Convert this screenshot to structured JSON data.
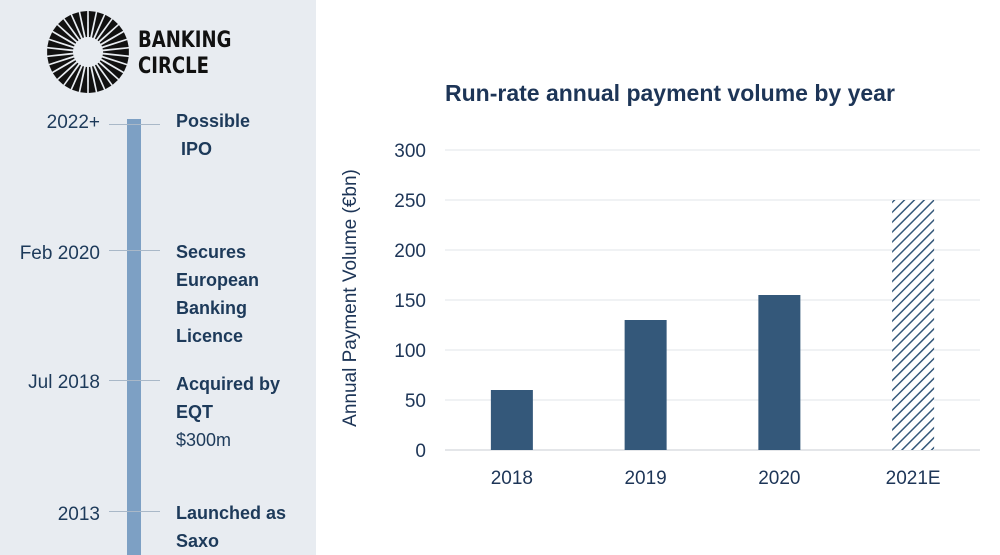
{
  "brand": {
    "line1": "BANKING",
    "line2": "CIRCLE",
    "colors": {
      "logo": "#111111"
    },
    "logo_icon": "sunburst-logo-icon"
  },
  "timeline": [
    {
      "date": "2022+",
      "event_lines": [
        "Possible",
        " IPO"
      ],
      "bold_lines": 2
    },
    {
      "date": "Feb 2020",
      "event_lines": [
        "Secures",
        "European",
        "Banking",
        "Licence"
      ],
      "bold_lines": 4
    },
    {
      "date": "Jul 2018",
      "event_lines": [
        "Acquired by",
        "EQT",
        "$300m"
      ],
      "bold_lines": 2
    },
    {
      "date": "2013",
      "event_lines": [
        "Launched as",
        "Saxo"
      ],
      "bold_lines": 2
    }
  ],
  "colors": {
    "bar": "#34587a",
    "timeline": "#7da0c4",
    "sidebar_bg": "#e8ecf1",
    "text": "#1d3557"
  },
  "chart_data": {
    "type": "bar",
    "title": "Run-rate annual payment volume by year",
    "ylabel": "Annual Payment Volume (€bn)",
    "xlabel": "",
    "categories": [
      "2018",
      "2019",
      "2020",
      "2021E"
    ],
    "values": [
      60,
      130,
      155,
      250
    ],
    "estimate": [
      false,
      false,
      false,
      true
    ],
    "ylim": [
      0,
      300
    ],
    "yticks": [
      0,
      50,
      100,
      150,
      200,
      250,
      300
    ],
    "grid": true
  }
}
